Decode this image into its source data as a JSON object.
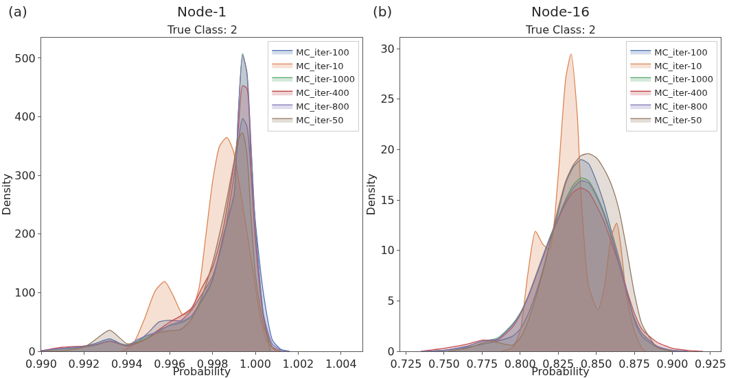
{
  "chart_data": [
    {
      "type": "area",
      "title": "Node-1",
      "subtitle": "True Class: 2",
      "annotations": [
        "(a)"
      ],
      "xlabel": "Probability",
      "ylabel": "Density",
      "legend": "top right",
      "xlim": [
        0.99,
        1.005
      ],
      "ylim": [
        0,
        535
      ],
      "xticks": [
        {
          "value": 0.99,
          "label": "0.990"
        },
        0.992,
        0.994,
        0.996,
        0.998,
        {
          "value": 1.0,
          "label": "1.000"
        },
        1.002,
        1.004
      ],
      "yticks": [
        0,
        100,
        200,
        300,
        400,
        500
      ],
      "series": [
        {
          "name": "MC_iter-100",
          "color": "#4c72b0",
          "x": [
            0.99,
            0.991,
            0.992,
            0.9925,
            0.9932,
            0.994,
            0.9945,
            0.995,
            0.9955,
            0.996,
            0.9965,
            0.997,
            0.9975,
            0.998,
            0.9985,
            0.999,
            0.9992,
            0.9994,
            0.9996,
            0.9998,
            1.0,
            1.0004,
            1.0008,
            1.0012,
            1.0016
          ],
          "values": [
            1,
            5,
            9,
            13,
            21,
            9,
            17,
            32,
            50,
            53,
            52,
            69,
            97,
            128,
            190,
            299,
            358,
            397,
            385,
            307,
            221,
            93,
            19,
            3,
            0
          ]
        },
        {
          "name": "MC_iter-10",
          "color": "#dd8452",
          "x": [
            0.99374,
            0.99427,
            0.99481,
            0.99534,
            0.99577,
            0.99619,
            0.99662,
            0.99705,
            0.99737,
            0.99769,
            0.99801,
            0.99833,
            0.99867,
            0.99897,
            0.99929,
            0.99961,
            0.99993,
            1.00025,
            1.00057,
            1.00099
          ],
          "values": [
            0,
            11,
            54,
            104,
            119,
            93,
            62,
            73,
            108,
            198,
            291,
            350,
            365,
            342,
            276,
            202,
            128,
            54,
            15,
            0
          ]
        },
        {
          "name": "MC_iter-1000",
          "color": "#55a868",
          "x": [
            0.99,
            0.991,
            0.992,
            0.9925,
            0.9932,
            0.994,
            0.9945,
            0.995,
            0.9955,
            0.996,
            0.9965,
            0.997,
            0.9975,
            0.998,
            0.9985,
            0.999,
            0.9992,
            0.9994,
            0.9996,
            0.9998,
            1.0,
            1.0004,
            1.0007
          ],
          "values": [
            1,
            4,
            7,
            10,
            17,
            11,
            17,
            26,
            36,
            44,
            48,
            58,
            85,
            120,
            198,
            268,
            405,
            508,
            475,
            346,
            210,
            54,
            0
          ]
        },
        {
          "name": "MC_iter-400",
          "color": "#c44e52",
          "x": [
            0.99,
            0.991,
            0.992,
            0.9925,
            0.9932,
            0.994,
            0.9945,
            0.995,
            0.9955,
            0.996,
            0.9965,
            0.997,
            0.9975,
            0.998,
            0.9985,
            0.999,
            0.9992,
            0.9994,
            0.9996,
            0.9998,
            1.0,
            1.0004,
            1.0008,
            1.0012
          ],
          "values": [
            1,
            7,
            9,
            11,
            17,
            9,
            14,
            23,
            37,
            50,
            60,
            73,
            108,
            143,
            210,
            319,
            377,
            453,
            449,
            307,
            190,
            54,
            7,
            0
          ]
        },
        {
          "name": "MC_iter-800",
          "color": "#8172b3",
          "x": [
            0.99,
            0.991,
            0.992,
            0.9925,
            0.9932,
            0.994,
            0.9945,
            0.995,
            0.9955,
            0.996,
            0.9965,
            0.997,
            0.9975,
            0.998,
            0.9985,
            0.999,
            0.9992,
            0.9994,
            0.9996,
            0.9998,
            1.0,
            1.0004,
            1.0008,
            1.0012,
            1.0016
          ],
          "values": [
            1,
            5,
            8,
            11,
            18,
            10,
            20,
            28,
            34,
            45,
            50,
            60,
            88,
            123,
            196,
            265,
            402,
            505,
            478,
            350,
            215,
            60,
            12,
            2,
            0
          ]
        },
        {
          "name": "MC_iter-50",
          "color": "#937860",
          "x": [
            0.99,
            0.991,
            0.992,
            0.9925,
            0.9932,
            0.994,
            0.9945,
            0.995,
            0.9955,
            0.996,
            0.9965,
            0.997,
            0.9975,
            0.998,
            0.9985,
            0.999,
            0.9992,
            0.9994,
            0.9996,
            0.9998,
            1.0,
            1.0004,
            1.0008,
            1.0012
          ],
          "values": [
            0,
            1,
            7,
            19,
            36,
            13,
            15,
            23,
            32,
            35,
            37,
            54,
            93,
            151,
            229,
            323,
            362,
            373,
            338,
            229,
            132,
            42,
            7,
            0
          ]
        }
      ]
    },
    {
      "type": "area",
      "title": "Node-16",
      "subtitle": "True Class: 2",
      "annotations": [
        "(b)"
      ],
      "xlabel": "Probability",
      "ylabel": "Density",
      "legend": "top right",
      "xlim": [
        0.7212,
        0.9318
      ],
      "ylim": [
        0,
        31.1
      ],
      "xticks": [
        0.725,
        {
          "value": 0.75,
          "label": "0.750"
        },
        0.775,
        {
          "value": 0.8,
          "label": "0.800"
        },
        0.825,
        {
          "value": 0.85,
          "label": "0.850"
        },
        0.875,
        {
          "value": 0.9,
          "label": "0.900"
        },
        0.925
      ],
      "yticks": [
        0,
        5,
        10,
        15,
        20,
        25,
        30
      ],
      "series": [
        {
          "name": "MC_iter-100",
          "color": "#4c72b0",
          "x": [
            0.735,
            0.75,
            0.765,
            0.775,
            0.785,
            0.795,
            0.8,
            0.805,
            0.81,
            0.815,
            0.82,
            0.825,
            0.83,
            0.835,
            0.84,
            0.845,
            0.85,
            0.855,
            0.86,
            0.865,
            0.87,
            0.875,
            0.88,
            0.89,
            0.9,
            0.91
          ],
          "values": [
            0,
            0.1,
            0.4,
            0.7,
            1.0,
            1.5,
            2.2,
            3.6,
            5.6,
            8.1,
            11.0,
            13.8,
            16.7,
            18.3,
            19.0,
            18.6,
            16.9,
            14.7,
            11.9,
            9.2,
            6.1,
            3.1,
            1.5,
            0.4,
            0.1,
            0
          ]
        },
        {
          "name": "MC_iter-10",
          "color": "#dd8452",
          "x": [
            0.788,
            0.795,
            0.8,
            0.805,
            0.81,
            0.815,
            0.8195,
            0.825,
            0.83,
            0.8335,
            0.8375,
            0.84,
            0.845,
            0.851,
            0.855,
            0.86,
            0.8635,
            0.866,
            0.87,
            0.875,
            0.88,
            0.8825
          ],
          "values": [
            0,
            0.4,
            2,
            7.6,
            11.9,
            10.6,
            10.1,
            17.4,
            27.1,
            29.5,
            23.5,
            15.6,
            6.5,
            4.1,
            6.1,
            11.5,
            12.7,
            10.6,
            5.4,
            2,
            0.3,
            0
          ]
        },
        {
          "name": "MC_iter-1000",
          "color": "#55a868",
          "x": [
            0.735,
            0.75,
            0.765,
            0.775,
            0.785,
            0.795,
            0.8,
            0.805,
            0.81,
            0.815,
            0.82,
            0.825,
            0.83,
            0.835,
            0.84,
            0.845,
            0.85,
            0.855,
            0.86,
            0.865,
            0.87,
            0.875,
            0.88,
            0.89,
            0.9,
            0.91
          ],
          "values": [
            0,
            0.1,
            0.5,
            1.0,
            1.3,
            2.7,
            3.8,
            5.4,
            7.4,
            9.5,
            11.5,
            13.3,
            15.1,
            16.5,
            17.2,
            16.9,
            15.6,
            13.8,
            11.5,
            8.8,
            5.8,
            3.3,
            1.8,
            0.5,
            0.1,
            0
          ]
        },
        {
          "name": "MC_iter-400",
          "color": "#c44e52",
          "x": [
            0.735,
            0.75,
            0.765,
            0.775,
            0.785,
            0.795,
            0.8,
            0.805,
            0.81,
            0.815,
            0.82,
            0.825,
            0.83,
            0.835,
            0.84,
            0.845,
            0.85,
            0.855,
            0.86,
            0.865,
            0.87,
            0.875,
            0.88,
            0.89,
            0.9,
            0.91,
            0.92
          ],
          "values": [
            0,
            0.3,
            0.7,
            1.1,
            1.1,
            2.4,
            3.6,
            5.3,
            7.3,
            9.3,
            11.3,
            13.1,
            14.7,
            15.8,
            16.2,
            15.8,
            14.5,
            12.9,
            10.8,
            8.6,
            6.1,
            3.8,
            2.2,
            0.9,
            0.3,
            0.1,
            0
          ]
        },
        {
          "name": "MC_iter-800",
          "color": "#8172b3",
          "x": [
            0.735,
            0.75,
            0.765,
            0.775,
            0.785,
            0.795,
            0.8,
            0.805,
            0.81,
            0.815,
            0.82,
            0.825,
            0.83,
            0.835,
            0.84,
            0.845,
            0.85,
            0.855,
            0.86,
            0.865,
            0.87,
            0.875,
            0.88,
            0.89,
            0.9,
            0.91
          ],
          "values": [
            0,
            0.1,
            0.5,
            1.0,
            1.2,
            2.6,
            3.7,
            5.3,
            7.3,
            9.4,
            11.4,
            13.2,
            14.9,
            16.2,
            16.9,
            16.7,
            15.4,
            13.6,
            11.3,
            8.7,
            5.8,
            3.3,
            1.8,
            0.5,
            0.1,
            0
          ]
        },
        {
          "name": "MC_iter-50",
          "color": "#937860",
          "x": [
            0.753,
            0.765,
            0.775,
            0.78,
            0.79,
            0.795,
            0.8,
            0.805,
            0.81,
            0.815,
            0.82,
            0.825,
            0.83,
            0.835,
            0.84,
            0.845,
            0.85,
            0.855,
            0.86,
            0.865,
            0.87,
            0.875,
            0.88,
            0.89,
            0.9
          ],
          "values": [
            0,
            0.3,
            0.8,
            1.0,
            0.7,
            0.6,
            1.3,
            2.9,
            5.2,
            7.9,
            11.0,
            14.2,
            16.9,
            18.5,
            19.4,
            19.6,
            19.2,
            18.1,
            16.5,
            14.0,
            10.1,
            5.8,
            2.7,
            0.4,
            0
          ]
        }
      ]
    }
  ]
}
